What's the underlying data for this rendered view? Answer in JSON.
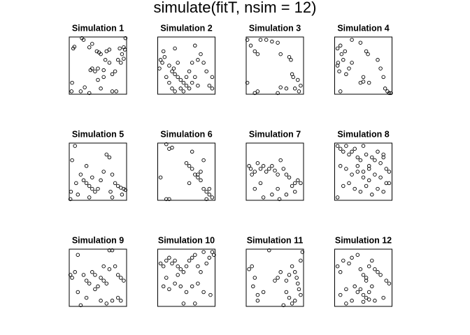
{
  "title": "simulate(fitT, nsim = 12)",
  "chart_data": [
    {
      "type": "scatter",
      "title": "Simulation 1",
      "xlim": [
        0,
        1
      ],
      "ylim": [
        0,
        1
      ],
      "x": [
        0.07,
        0.09,
        0.22,
        0.25,
        0.35,
        0.4,
        0.48,
        0.52,
        0.55,
        0.65,
        0.7,
        0.88,
        0.95,
        0.97,
        0.92,
        0.95,
        0.9,
        0.85,
        0.98,
        0.4,
        0.45,
        0.37,
        0.5,
        0.6,
        0.63,
        0.7,
        0.75,
        0.8,
        0.6,
        0.5,
        0.05,
        0.04,
        0.2,
        0.35,
        0.27,
        0.75,
        0.82,
        0.55
      ],
      "y": [
        0.8,
        0.83,
        0.98,
        0.95,
        0.82,
        0.88,
        0.75,
        0.73,
        0.7,
        0.75,
        0.78,
        0.8,
        0.82,
        0.78,
        0.7,
        0.62,
        0.55,
        0.6,
        0.98,
        0.45,
        0.4,
        0.42,
        0.45,
        0.42,
        0.6,
        0.55,
        0.35,
        0.4,
        0.3,
        0.25,
        0.2,
        0.05,
        0.05,
        0.02,
        0.12,
        0.05,
        0.05,
        0.1
      ]
    },
    {
      "type": "scatter",
      "title": "Simulation 2",
      "xlim": [
        0,
        1
      ],
      "ylim": [
        0,
        1
      ],
      "x": [
        0.05,
        0.08,
        0.12,
        0.03,
        0.2,
        0.25,
        0.3,
        0.35,
        0.4,
        0.45,
        0.5,
        0.55,
        0.6,
        0.65,
        0.7,
        0.2,
        0.15,
        0.25,
        0.3,
        0.4,
        0.45,
        0.5,
        0.55,
        0.35,
        0.28,
        0.6,
        0.7,
        0.75,
        0.8,
        0.85,
        0.9,
        0.95,
        0.95,
        0.65,
        0.1,
        0.3
      ],
      "y": [
        0.6,
        0.55,
        0.65,
        0.45,
        0.5,
        0.4,
        0.35,
        0.3,
        0.25,
        0.2,
        0.15,
        0.1,
        0.2,
        0.3,
        0.15,
        0.2,
        0.3,
        0.1,
        0.05,
        0.1,
        0.05,
        0.3,
        0.4,
        0.55,
        0.45,
        0.55,
        0.6,
        0.7,
        0.55,
        0.4,
        0.15,
        0.1,
        0.3,
        0.85,
        0.75,
        0.8
      ]
    },
    {
      "type": "scatter",
      "title": "Simulation 3",
      "xlim": [
        0,
        1
      ],
      "ylim": [
        0,
        1
      ],
      "x": [
        0.02,
        0.08,
        0.15,
        0.2,
        0.25,
        0.35,
        0.45,
        0.55,
        0.6,
        0.75,
        0.8,
        0.82,
        0.9,
        0.95,
        0.92,
        0.85,
        0.7,
        0.6,
        0.55,
        0.15,
        0.2,
        0.02,
        0.78
      ],
      "y": [
        0.95,
        0.85,
        0.75,
        0.7,
        0.95,
        0.95,
        0.92,
        0.9,
        0.7,
        0.65,
        0.35,
        0.3,
        0.25,
        0.15,
        0.05,
        0.1,
        0.1,
        0.12,
        0.02,
        0.02,
        0.05,
        0.2,
        0.6
      ]
    },
    {
      "type": "scatter",
      "title": "Simulation 4",
      "xlim": [
        0,
        1
      ],
      "ylim": [
        0,
        1
      ],
      "x": [
        0.05,
        0.1,
        0.12,
        0.15,
        0.18,
        0.05,
        0.08,
        0.2,
        0.25,
        0.3,
        0.45,
        0.55,
        0.58,
        0.5,
        0.6,
        0.75,
        0.8,
        0.85,
        0.88,
        0.92,
        0.95,
        0.98,
        0.45,
        0.5,
        0.1,
        0.06,
        0.3
      ],
      "y": [
        0.8,
        0.85,
        0.7,
        0.6,
        0.75,
        0.5,
        0.4,
        0.35,
        0.45,
        0.55,
        0.9,
        0.75,
        0.7,
        0.3,
        0.2,
        0.6,
        0.45,
        0.3,
        0.1,
        0.05,
        0.02,
        0.02,
        0.2,
        0.22,
        0.05,
        0.55,
        0.95
      ]
    },
    {
      "type": "scatter",
      "title": "Simulation 5",
      "xlim": [
        0,
        1
      ],
      "ylim": [
        0,
        1
      ],
      "x": [
        0.05,
        0.03,
        0.1,
        0.12,
        0.2,
        0.25,
        0.3,
        0.35,
        0.4,
        0.45,
        0.5,
        0.55,
        0.6,
        0.65,
        0.7,
        0.75,
        0.8,
        0.85,
        0.9,
        0.95,
        0.98,
        0.92,
        0.75,
        0.35,
        0.15,
        0.02,
        0.4,
        0.72,
        0.3
      ],
      "y": [
        0.7,
        0.15,
        0.95,
        0.3,
        0.45,
        0.35,
        0.3,
        0.25,
        0.2,
        0.15,
        0.2,
        0.35,
        0.5,
        0.8,
        0.75,
        0.45,
        0.3,
        0.25,
        0.22,
        0.2,
        0.18,
        0.1,
        0.05,
        0.05,
        0.1,
        0.02,
        0.4,
        0.15,
        0.6
      ]
    },
    {
      "type": "scatter",
      "title": "Simulation 6",
      "xlim": [
        0,
        1
      ],
      "ylim": [
        0,
        1
      ],
      "x": [
        0.15,
        0.2,
        0.25,
        0.05,
        0.5,
        0.55,
        0.6,
        0.55,
        0.65,
        0.7,
        0.75,
        0.8,
        0.85,
        0.9,
        0.95,
        0.85,
        0.75,
        0.7,
        0.2,
        0.15,
        0.9,
        0.8,
        0.6
      ],
      "y": [
        0.98,
        0.9,
        0.92,
        0.4,
        0.65,
        0.6,
        0.55,
        0.3,
        0.45,
        0.4,
        0.35,
        0.2,
        0.15,
        0.1,
        0.05,
        0.02,
        0.5,
        0.45,
        0.02,
        0.02,
        0.2,
        0.7,
        0.85
      ]
    },
    {
      "type": "scatter",
      "title": "Simulation 7",
      "xlim": [
        0,
        1
      ],
      "ylim": [
        0,
        1
      ],
      "x": [
        0.05,
        0.08,
        0.1,
        0.15,
        0.2,
        0.25,
        0.3,
        0.35,
        0.4,
        0.45,
        0.5,
        0.55,
        0.6,
        0.65,
        0.7,
        0.75,
        0.8,
        0.85,
        0.9,
        0.95,
        0.85,
        0.7,
        0.55,
        0.45,
        0.25,
        0.15,
        0.3,
        0.58
      ],
      "y": [
        0.6,
        0.55,
        0.45,
        0.5,
        0.65,
        0.55,
        0.6,
        0.5,
        0.55,
        0.6,
        0.52,
        0.45,
        0.7,
        0.55,
        0.45,
        0.4,
        0.25,
        0.3,
        0.35,
        0.3,
        0.15,
        0.1,
        0.2,
        0.1,
        0.3,
        0.2,
        0.05,
        0.02
      ]
    },
    {
      "type": "scatter",
      "title": "Simulation 8",
      "xlim": [
        0,
        1
      ],
      "ylim": [
        0,
        1
      ],
      "x": [
        0.05,
        0.1,
        0.15,
        0.2,
        0.25,
        0.3,
        0.35,
        0.4,
        0.45,
        0.5,
        0.55,
        0.6,
        0.65,
        0.7,
        0.75,
        0.8,
        0.85,
        0.9,
        0.95,
        0.1,
        0.2,
        0.3,
        0.4,
        0.5,
        0.6,
        0.7,
        0.8,
        0.9,
        0.15,
        0.25,
        0.35,
        0.45,
        0.55,
        0.65,
        0.75,
        0.85,
        0.95,
        0.05,
        0.5,
        0.4,
        0.6,
        0.85
      ],
      "y": [
        0.95,
        0.9,
        0.85,
        0.95,
        0.8,
        0.85,
        0.9,
        0.75,
        0.7,
        0.95,
        0.8,
        0.6,
        0.75,
        0.7,
        0.85,
        0.65,
        0.75,
        0.55,
        0.5,
        0.6,
        0.55,
        0.45,
        0.5,
        0.4,
        0.35,
        0.45,
        0.4,
        0.3,
        0.25,
        0.3,
        0.2,
        0.15,
        0.25,
        0.1,
        0.2,
        0.15,
        0.3,
        0.05,
        0.5,
        0.6,
        0.55,
        0.8
      ]
    },
    {
      "type": "scatter",
      "title": "Simulation 9",
      "xlim": [
        0,
        1
      ],
      "ylim": [
        0,
        1
      ],
      "x": [
        0.02,
        0.05,
        0.1,
        0.15,
        0.25,
        0.3,
        0.35,
        0.4,
        0.45,
        0.55,
        0.6,
        0.65,
        0.7,
        0.75,
        0.8,
        0.85,
        0.9,
        0.95,
        0.15,
        0.3,
        0.45,
        0.55,
        0.65,
        0.75,
        0.85,
        0.2,
        0.5,
        0.6,
        0.7,
        0.9
      ],
      "y": [
        0.55,
        0.5,
        0.6,
        0.9,
        0.55,
        0.45,
        0.4,
        0.6,
        0.55,
        0.5,
        0.45,
        0.4,
        0.98,
        0.98,
        0.7,
        0.55,
        0.5,
        0.45,
        0.25,
        0.15,
        0.3,
        0.1,
        0.05,
        0.1,
        0.15,
        0.02,
        0.35,
        0.7,
        0.65,
        0.1
      ]
    },
    {
      "type": "scatter",
      "title": "Simulation 10",
      "xlim": [
        0,
        1
      ],
      "ylim": [
        0,
        1
      ],
      "x": [
        0.05,
        0.1,
        0.15,
        0.2,
        0.25,
        0.3,
        0.35,
        0.4,
        0.45,
        0.5,
        0.55,
        0.6,
        0.65,
        0.7,
        0.75,
        0.8,
        0.85,
        0.9,
        0.95,
        0.98,
        0.1,
        0.2,
        0.3,
        0.4,
        0.5,
        0.6,
        0.7,
        0.8,
        0.45,
        0.15,
        0.35,
        0.65,
        0.92
      ],
      "y": [
        0.75,
        0.7,
        0.8,
        0.85,
        0.75,
        0.8,
        0.7,
        0.65,
        0.6,
        0.7,
        0.8,
        0.85,
        0.9,
        0.7,
        0.6,
        0.95,
        0.75,
        0.85,
        0.95,
        0.9,
        0.35,
        0.3,
        0.4,
        0.35,
        0.25,
        0.35,
        0.4,
        0.25,
        0.05,
        0.5,
        0.55,
        0.05,
        0.2
      ]
    },
    {
      "type": "scatter",
      "title": "Simulation 11",
      "xlim": [
        0,
        1
      ],
      "ylim": [
        0,
        1
      ],
      "x": [
        0.05,
        0.1,
        0.15,
        0.12,
        0.2,
        0.3,
        0.4,
        0.55,
        0.6,
        0.7,
        0.75,
        0.8,
        0.85,
        0.88,
        0.9,
        0.92,
        0.95,
        0.98,
        0.85,
        0.8,
        0.75,
        0.7,
        0.65,
        0.2,
        0.5,
        0.95
      ],
      "y": [
        0.65,
        0.7,
        0.5,
        0.35,
        0.2,
        0.25,
        0.98,
        0.5,
        0.6,
        0.45,
        0.55,
        0.7,
        0.6,
        0.5,
        0.4,
        0.3,
        0.2,
        0.95,
        0.1,
        0.05,
        0.15,
        0.25,
        0.02,
        0.1,
        0.45,
        0.8
      ]
    },
    {
      "type": "scatter",
      "title": "Simulation 12",
      "xlim": [
        0,
        1
      ],
      "ylim": [
        0,
        1
      ],
      "x": [
        0.05,
        0.1,
        0.15,
        0.25,
        0.3,
        0.4,
        0.45,
        0.5,
        0.55,
        0.6,
        0.65,
        0.7,
        0.75,
        0.8,
        0.2,
        0.35,
        0.4,
        0.45,
        0.5,
        0.55,
        0.6,
        0.65,
        0.7,
        0.9,
        0.95,
        0.1,
        0.2,
        0.3,
        0.5,
        0.6,
        0.85,
        0.55
      ],
      "y": [
        0.7,
        0.6,
        0.8,
        0.75,
        0.85,
        0.9,
        0.65,
        0.55,
        0.5,
        0.7,
        0.8,
        0.65,
        0.6,
        0.55,
        0.3,
        0.35,
        0.25,
        0.3,
        0.2,
        0.15,
        0.25,
        0.35,
        0.1,
        0.45,
        0.4,
        0.2,
        0.05,
        0.1,
        0.08,
        0.12,
        0.15,
        0.45
      ]
    }
  ]
}
